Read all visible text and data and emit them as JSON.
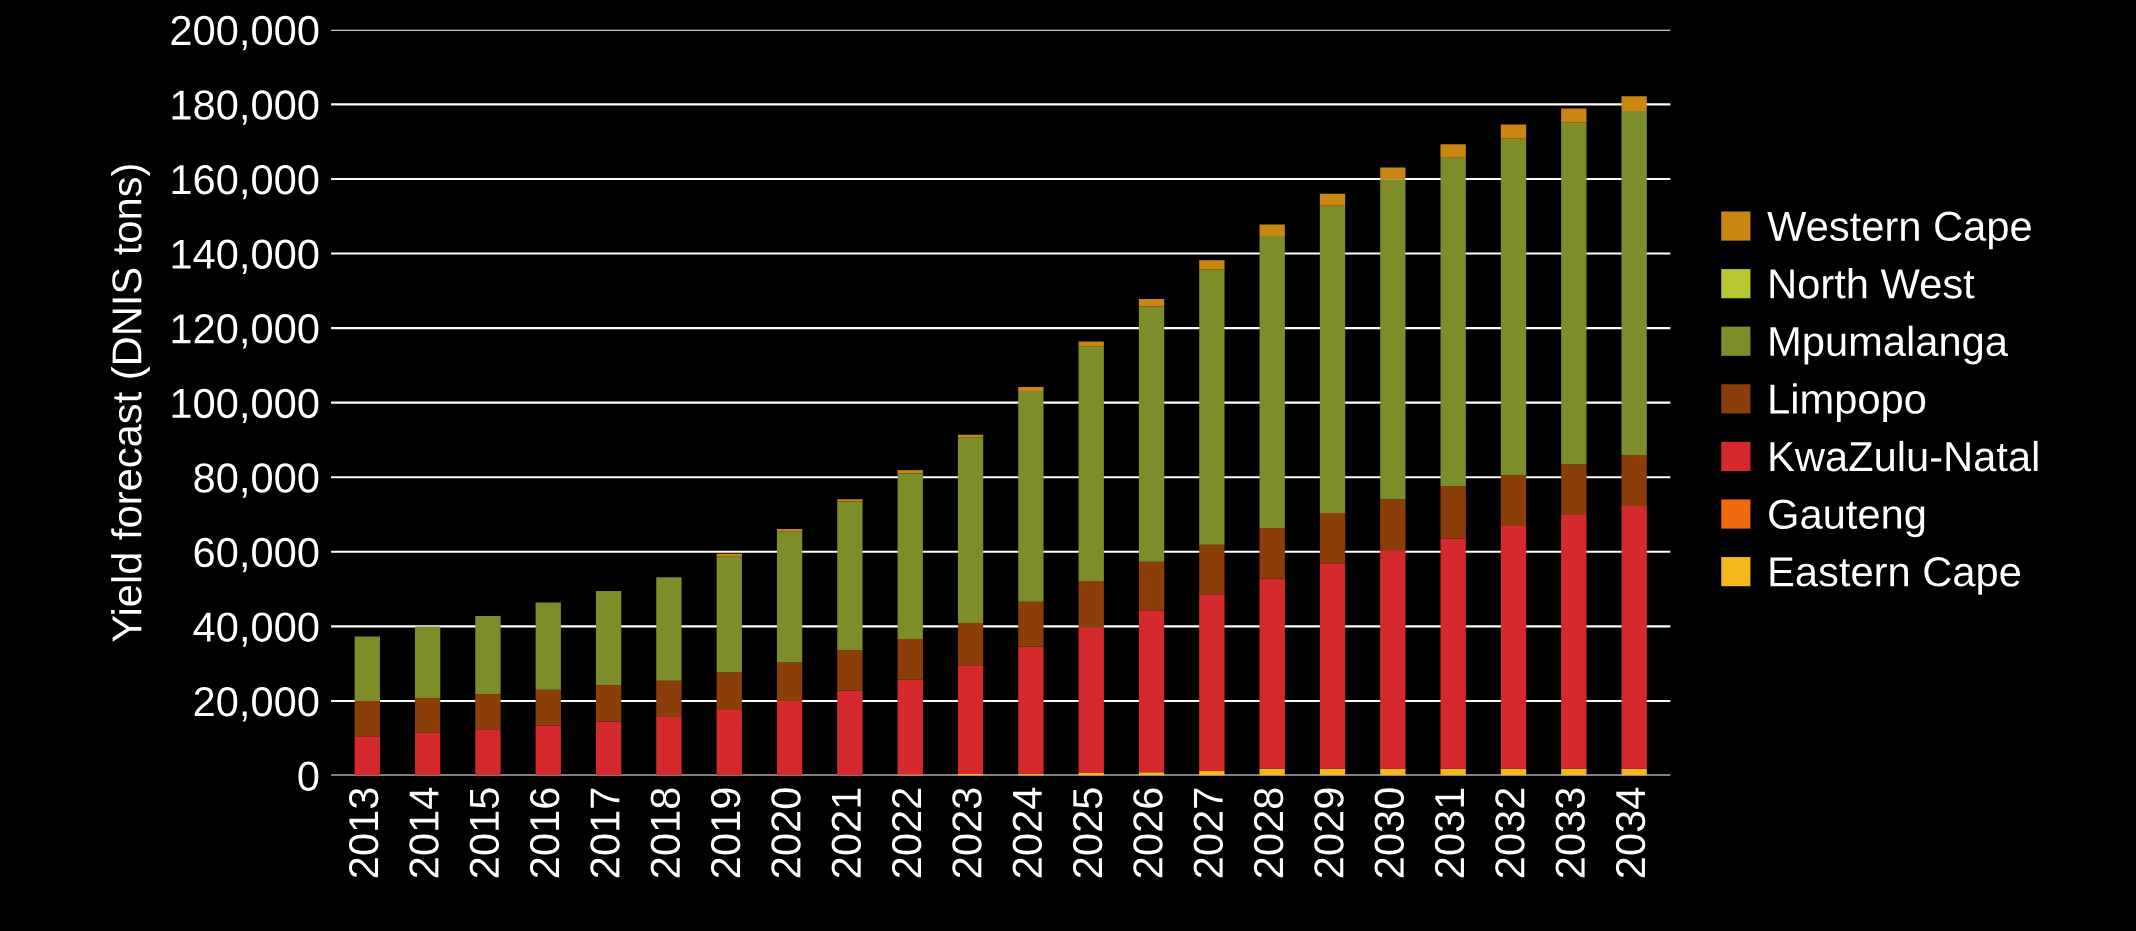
{
  "chart_data": {
    "type": "bar",
    "stacked": true,
    "ylabel": "Yield forecast (DNIS tons)",
    "categories": [
      "2013",
      "2014",
      "2015",
      "2016",
      "2017",
      "2018",
      "2019",
      "2020",
      "2021",
      "2022",
      "2023",
      "2024",
      "2025",
      "2026",
      "2027",
      "2028",
      "2029",
      "2030",
      "2031",
      "2032",
      "2033",
      "2034"
    ],
    "series": [
      {
        "name": "Eastern Cape",
        "color": "#f5b81c",
        "values": [
          0,
          0,
          0,
          0,
          0,
          0,
          0,
          0,
          0,
          300,
          400,
          500,
          700,
          900,
          1200,
          1800,
          1800,
          1800,
          1800,
          1800,
          1800,
          1800
        ]
      },
      {
        "name": "Gauteng",
        "color": "#f26a10",
        "values": [
          0,
          0,
          0,
          0,
          0,
          0,
          0,
          0,
          0,
          0,
          0,
          0,
          0,
          0,
          0,
          0,
          0,
          0,
          0,
          0,
          0,
          0
        ]
      },
      {
        "name": "KwaZulu-Natal",
        "color": "#d42a2e",
        "values": [
          10500,
          11500,
          12400,
          13400,
          14500,
          15700,
          17600,
          20000,
          22800,
          25400,
          29200,
          34100,
          38900,
          43400,
          47400,
          51000,
          55100,
          58600,
          61800,
          65100,
          68100,
          70500
        ]
      },
      {
        "name": "Limpopo",
        "color": "#8b3e0a",
        "values": [
          9500,
          9300,
          9400,
          9600,
          9700,
          9700,
          10000,
          10300,
          10800,
          10900,
          11300,
          12000,
          12600,
          13000,
          13300,
          13600,
          13500,
          13700,
          14000,
          13600,
          13500,
          13600
        ]
      },
      {
        "name": "Mpumalanga",
        "color": "#7f8c2a",
        "values": [
          17300,
          19200,
          21000,
          23400,
          25300,
          27800,
          31200,
          35100,
          39900,
          44500,
          49800,
          56500,
          62800,
          68500,
          73800,
          78300,
          82400,
          85800,
          88100,
          90300,
          91700,
          92300
        ]
      },
      {
        "name": "North West",
        "color": "#b8c832",
        "values": [
          0,
          0,
          0,
          0,
          0,
          0,
          0,
          0,
          0,
          0,
          0,
          0,
          0,
          0,
          0,
          0,
          0,
          0,
          0,
          0,
          0,
          0
        ]
      },
      {
        "name": "Western Cape",
        "color": "#c98612",
        "values": [
          0,
          0,
          0,
          0,
          0,
          0,
          700,
          700,
          600,
          800,
          700,
          1100,
          1400,
          2000,
          2500,
          3100,
          3200,
          3200,
          3600,
          3800,
          3800,
          4000
        ]
      }
    ],
    "ylim": [
      0,
      200000
    ],
    "yticks": [
      {
        "value": 0,
        "label": "0"
      },
      {
        "value": 20000,
        "label": "20,000"
      },
      {
        "value": 40000,
        "label": "40,000"
      },
      {
        "value": 60000,
        "label": "60,000"
      },
      {
        "value": 80000,
        "label": "80,000"
      },
      {
        "value": 100000,
        "label": "100,000"
      },
      {
        "value": 120000,
        "label": "120,000"
      },
      {
        "value": 140000,
        "label": "140,000"
      },
      {
        "value": 160000,
        "label": "160,000"
      },
      {
        "value": 180000,
        "label": "180,000"
      },
      {
        "value": 200000,
        "label": "200,000"
      }
    ],
    "grid": "y",
    "legend": "right"
  }
}
